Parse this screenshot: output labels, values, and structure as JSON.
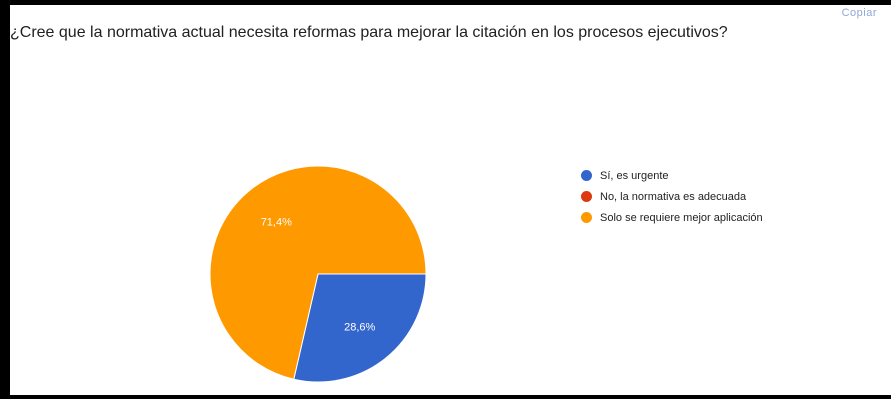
{
  "header": {
    "copy_label": "Copiar"
  },
  "chart_data": {
    "type": "pie",
    "title": "¿Cree que la normativa actual necesita reformas para mejorar la citación en los procesos ejecutivos?",
    "categories": [
      "Sí, es urgente",
      "No, la normativa es adecuada",
      "Solo se requiere mejor aplicación"
    ],
    "values": [
      28.6,
      0,
      71.4
    ],
    "data_labels": [
      "28,6%",
      "",
      "71,4%"
    ],
    "colors": [
      "#3366cc",
      "#dc3912",
      "#ff9900"
    ],
    "legend_position": "right"
  }
}
